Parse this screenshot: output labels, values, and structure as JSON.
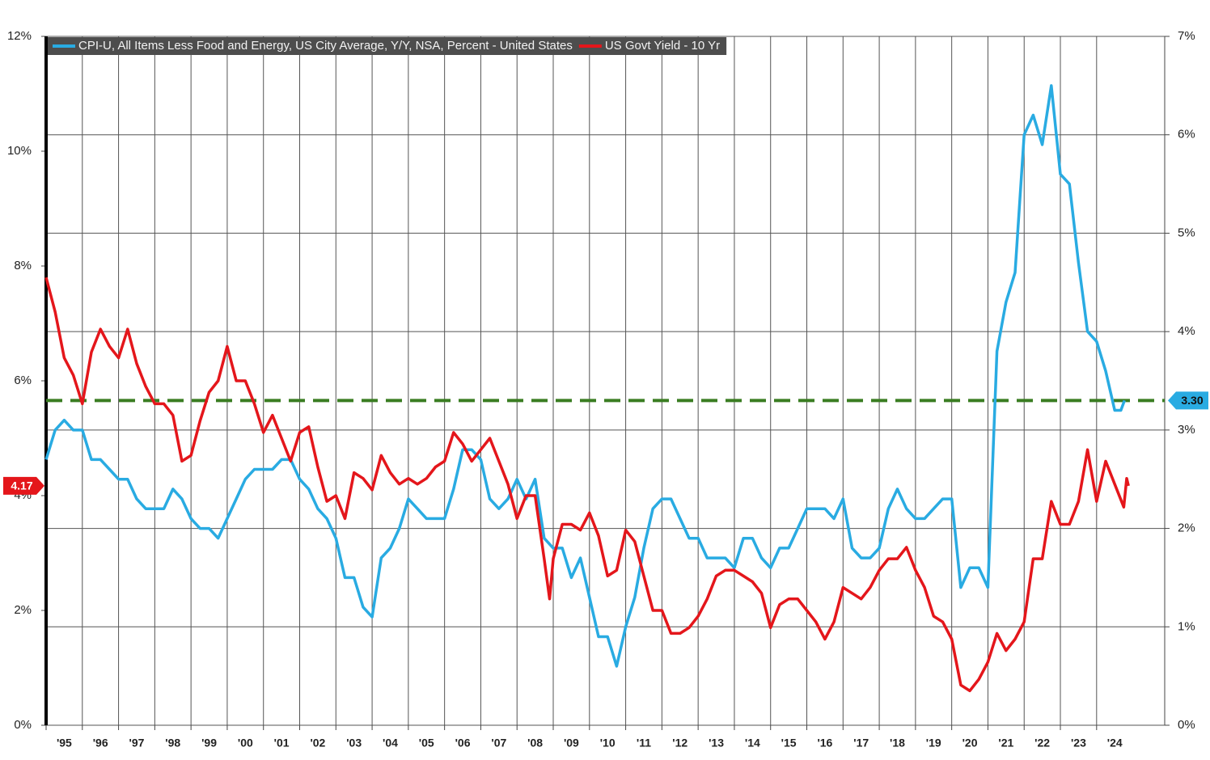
{
  "chart_data": {
    "type": "line",
    "xlim": [
      1995,
      2025.88
    ],
    "xticks": [
      {
        "value": 1995,
        "label": "'95"
      },
      {
        "value": 1996,
        "label": "'96"
      },
      {
        "value": 1997,
        "label": "'97"
      },
      {
        "value": 1998,
        "label": "'98"
      },
      {
        "value": 1999,
        "label": "'99"
      },
      {
        "value": 2000,
        "label": "'00"
      },
      {
        "value": 2001,
        "label": "'01"
      },
      {
        "value": 2002,
        "label": "'02"
      },
      {
        "value": 2003,
        "label": "'03"
      },
      {
        "value": 2004,
        "label": "'04"
      },
      {
        "value": 2005,
        "label": "'05"
      },
      {
        "value": 2006,
        "label": "'06"
      },
      {
        "value": 2007,
        "label": "'07"
      },
      {
        "value": 2008,
        "label": "'08"
      },
      {
        "value": 2009,
        "label": "'09"
      },
      {
        "value": 2010,
        "label": "'10"
      },
      {
        "value": 2011,
        "label": "'11"
      },
      {
        "value": 2012,
        "label": "'12"
      },
      {
        "value": 2013,
        "label": "'13"
      },
      {
        "value": 2014,
        "label": "'14"
      },
      {
        "value": 2015,
        "label": "'15"
      },
      {
        "value": 2016,
        "label": "'16"
      },
      {
        "value": 2017,
        "label": "'17"
      },
      {
        "value": 2018,
        "label": "'18"
      },
      {
        "value": 2019,
        "label": "'19"
      },
      {
        "value": 2020,
        "label": "'20"
      },
      {
        "value": 2021,
        "label": "'21"
      },
      {
        "value": 2022,
        "label": "'22"
      },
      {
        "value": 2023,
        "label": "'23"
      },
      {
        "value": 2024,
        "label": "'24"
      }
    ],
    "ylim": [
      0,
      12
    ],
    "yticks": [
      {
        "value": 0,
        "label": "0%"
      },
      {
        "value": 2,
        "label": "2%"
      },
      {
        "value": 4,
        "label": "4%"
      },
      {
        "value": 6,
        "label": "6%"
      },
      {
        "value": 8,
        "label": "8%"
      },
      {
        "value": 10,
        "label": "10%"
      },
      {
        "value": 12,
        "label": "12%"
      }
    ],
    "y2lim": [
      0,
      7
    ],
    "y2ticks": [
      {
        "value": 0,
        "label": "0%"
      },
      {
        "value": 1,
        "label": "1%"
      },
      {
        "value": 2,
        "label": "2%"
      },
      {
        "value": 3,
        "label": "3%"
      },
      {
        "value": 4,
        "label": "4%"
      },
      {
        "value": 5,
        "label": "5%"
      },
      {
        "value": 6,
        "label": "6%"
      },
      {
        "value": 7,
        "label": "7%"
      }
    ],
    "grid": true,
    "legend": "top-left",
    "reference_line": {
      "value": 3.3,
      "axis": "y2",
      "color": "#3a7d22",
      "style": "dashed"
    },
    "series": [
      {
        "name": "CPI-U, All Items Less Food and Energy, US City Average, Y/Y, NSA, Percent - United States",
        "color": "#29abe2",
        "axis": "y2",
        "end_label": "3.30",
        "x": [
          1995,
          1995.25,
          1995.5,
          1995.75,
          1996,
          1996.25,
          1996.5,
          1996.75,
          1997,
          1997.25,
          1997.5,
          1997.75,
          1998,
          1998.25,
          1998.5,
          1998.75,
          1999,
          1999.25,
          1999.5,
          1999.75,
          2000,
          2000.25,
          2000.5,
          2000.75,
          2001,
          2001.25,
          2001.5,
          2001.75,
          2002,
          2002.25,
          2002.5,
          2002.75,
          2003,
          2003.25,
          2003.5,
          2003.75,
          2004,
          2004.25,
          2004.5,
          2004.75,
          2005,
          2005.25,
          2005.5,
          2005.75,
          2006,
          2006.25,
          2006.5,
          2006.75,
          2007,
          2007.25,
          2007.5,
          2007.75,
          2008,
          2008.25,
          2008.5,
          2008.75,
          2009,
          2009.25,
          2009.5,
          2009.75,
          2010,
          2010.25,
          2010.5,
          2010.75,
          2011,
          2011.25,
          2011.5,
          2011.75,
          2012,
          2012.25,
          2012.5,
          2012.75,
          2013,
          2013.25,
          2013.5,
          2013.75,
          2014,
          2014.25,
          2014.5,
          2014.75,
          2015,
          2015.25,
          2015.5,
          2015.75,
          2016,
          2016.25,
          2016.5,
          2016.75,
          2017,
          2017.25,
          2017.5,
          2017.75,
          2018,
          2018.25,
          2018.5,
          2018.75,
          2019,
          2019.25,
          2019.5,
          2019.75,
          2020,
          2020.25,
          2020.5,
          2020.75,
          2021,
          2021.25,
          2021.5,
          2021.75,
          2022,
          2022.25,
          2022.5,
          2022.75,
          2023,
          2023.25,
          2023.5,
          2023.75,
          2024,
          2024.25,
          2024.5,
          2024.67,
          2024.77
        ],
        "values": [
          2.7,
          3.0,
          3.1,
          3.0,
          3.0,
          2.7,
          2.7,
          2.6,
          2.5,
          2.5,
          2.3,
          2.2,
          2.2,
          2.2,
          2.4,
          2.3,
          2.1,
          2.0,
          2.0,
          1.9,
          2.1,
          2.3,
          2.5,
          2.6,
          2.6,
          2.6,
          2.7,
          2.7,
          2.5,
          2.4,
          2.2,
          2.1,
          1.9,
          1.5,
          1.5,
          1.2,
          1.1,
          1.7,
          1.8,
          2.0,
          2.3,
          2.2,
          2.1,
          2.1,
          2.1,
          2.4,
          2.8,
          2.8,
          2.7,
          2.3,
          2.2,
          2.3,
          2.5,
          2.3,
          2.5,
          1.9,
          1.8,
          1.8,
          1.5,
          1.7,
          1.3,
          0.9,
          0.9,
          0.6,
          1.0,
          1.3,
          1.8,
          2.2,
          2.3,
          2.3,
          2.1,
          1.9,
          1.9,
          1.7,
          1.7,
          1.7,
          1.6,
          1.9,
          1.9,
          1.7,
          1.6,
          1.8,
          1.8,
          2.0,
          2.2,
          2.2,
          2.2,
          2.1,
          2.3,
          1.8,
          1.7,
          1.7,
          1.8,
          2.2,
          2.4,
          2.2,
          2.1,
          2.1,
          2.2,
          2.3,
          2.3,
          1.4,
          1.6,
          1.6,
          1.4,
          3.8,
          4.3,
          4.6,
          6.0,
          6.2,
          5.9,
          6.5,
          5.6,
          5.5,
          4.7,
          4.0,
          3.9,
          3.6,
          3.2,
          3.2,
          3.3
        ]
      },
      {
        "name": "US Govt Yield - 10 Yr",
        "color": "#e4161b",
        "axis": "y",
        "end_label": "4.17",
        "x": [
          1995,
          1995.25,
          1995.5,
          1995.75,
          1996,
          1996.25,
          1996.5,
          1996.75,
          1997,
          1997.25,
          1997.5,
          1997.75,
          1998,
          1998.25,
          1998.5,
          1998.75,
          1999,
          1999.25,
          1999.5,
          1999.75,
          2000,
          2000.25,
          2000.5,
          2000.75,
          2001,
          2001.25,
          2001.5,
          2001.75,
          2002,
          2002.25,
          2002.5,
          2002.75,
          2003,
          2003.25,
          2003.5,
          2003.75,
          2004,
          2004.25,
          2004.5,
          2004.75,
          2005,
          2005.25,
          2005.5,
          2005.75,
          2006,
          2006.25,
          2006.5,
          2006.75,
          2007,
          2007.25,
          2007.5,
          2007.75,
          2008,
          2008.25,
          2008.5,
          2008.75,
          2008.9,
          2009,
          2009.25,
          2009.5,
          2009.75,
          2010,
          2010.25,
          2010.5,
          2010.75,
          2011,
          2011.25,
          2011.5,
          2011.75,
          2012,
          2012.25,
          2012.5,
          2012.75,
          2013,
          2013.25,
          2013.5,
          2013.75,
          2014,
          2014.25,
          2014.5,
          2014.75,
          2015,
          2015.25,
          2015.5,
          2015.75,
          2016,
          2016.25,
          2016.5,
          2016.75,
          2017,
          2017.25,
          2017.5,
          2017.75,
          2018,
          2018.25,
          2018.5,
          2018.75,
          2019,
          2019.25,
          2019.5,
          2019.75,
          2020,
          2020.25,
          2020.5,
          2020.75,
          2021,
          2021.25,
          2021.5,
          2021.75,
          2022,
          2022.25,
          2022.5,
          2022.75,
          2023,
          2023.25,
          2023.5,
          2023.75,
          2024,
          2024.25,
          2024.5,
          2024.75,
          2024.83,
          2024.88
        ],
        "values": [
          7.8,
          7.2,
          6.4,
          6.1,
          5.6,
          6.5,
          6.9,
          6.6,
          6.4,
          6.9,
          6.3,
          5.9,
          5.6,
          5.6,
          5.4,
          4.6,
          4.7,
          5.3,
          5.8,
          6.0,
          6.6,
          6.0,
          6.0,
          5.6,
          5.1,
          5.4,
          5.0,
          4.6,
          5.1,
          5.2,
          4.5,
          3.9,
          4.0,
          3.6,
          4.4,
          4.3,
          4.1,
          4.7,
          4.4,
          4.2,
          4.3,
          4.2,
          4.3,
          4.5,
          4.6,
          5.1,
          4.9,
          4.6,
          4.8,
          5.0,
          4.6,
          4.2,
          3.6,
          4.0,
          4.0,
          2.9,
          2.2,
          2.9,
          3.5,
          3.5,
          3.4,
          3.7,
          3.3,
          2.6,
          2.7,
          3.4,
          3.2,
          2.6,
          2.0,
          2.0,
          1.6,
          1.6,
          1.7,
          1.9,
          2.2,
          2.6,
          2.7,
          2.7,
          2.6,
          2.5,
          2.3,
          1.7,
          2.1,
          2.2,
          2.2,
          2.0,
          1.8,
          1.5,
          1.8,
          2.4,
          2.3,
          2.2,
          2.4,
          2.7,
          2.9,
          2.9,
          3.1,
          2.7,
          2.4,
          1.9,
          1.8,
          1.5,
          0.7,
          0.6,
          0.8,
          1.1,
          1.6,
          1.3,
          1.5,
          1.8,
          2.9,
          2.9,
          3.9,
          3.5,
          3.5,
          3.9,
          4.8,
          3.9,
          4.6,
          4.2,
          3.8,
          4.3,
          4.17
        ]
      }
    ]
  }
}
